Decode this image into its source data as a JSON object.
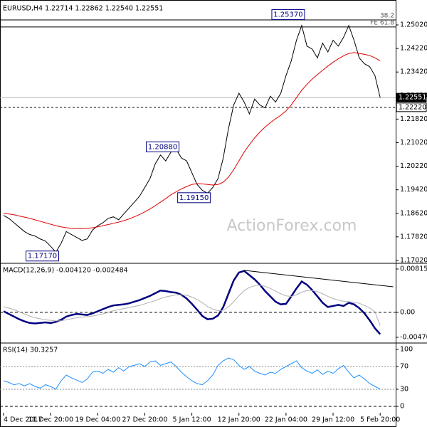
{
  "chart_data": [
    {
      "type": "line",
      "title": "EURUSD,H4  1.22714 1.22862 1.22540 1.22551",
      "watermark": "ActionForex.com",
      "series": [
        {
          "color": "#000000",
          "values": [
            1.1855,
            1.1845,
            1.183,
            1.1815,
            1.18,
            1.179,
            1.1785,
            1.1775,
            1.1768,
            1.175,
            1.173,
            1.176,
            1.18,
            1.179,
            1.178,
            1.177,
            1.1775,
            1.1805,
            1.182,
            1.183,
            1.1845,
            1.185,
            1.184,
            1.186,
            1.188,
            1.19,
            1.192,
            1.195,
            1.198,
            1.203,
            1.206,
            1.204,
            1.207,
            1.208,
            1.205,
            1.204,
            1.2,
            1.196,
            1.194,
            1.193,
            1.195,
            1.198,
            1.205,
            1.215,
            1.223,
            1.227,
            1.224,
            1.22,
            1.225,
            1.223,
            1.222,
            1.226,
            1.224,
            1.227,
            1.233,
            1.238,
            1.245,
            1.25,
            1.243,
            1.242,
            1.239,
            1.244,
            1.241,
            1.245,
            1.243,
            1.246,
            1.25,
            1.245,
            1.239,
            1.237,
            1.236,
            1.233,
            1.2255
          ]
        },
        {
          "color": "#e00000",
          "values": [
            1.1862,
            1.186,
            1.1857,
            1.1853,
            1.1849,
            1.1845,
            1.184,
            1.1835,
            1.183,
            1.1825,
            1.182,
            1.1816,
            1.1813,
            1.1811,
            1.181,
            1.181,
            1.1811,
            1.1813,
            1.1816,
            1.182,
            1.1824,
            1.1828,
            1.1832,
            1.1837,
            1.1843,
            1.185,
            1.1858,
            1.1867,
            1.1877,
            1.1888,
            1.19,
            1.1912,
            1.1925,
            1.1935,
            1.1945,
            1.1953,
            1.196,
            1.1963,
            1.1962,
            1.196,
            1.1958,
            1.196,
            1.1968,
            1.1985,
            1.201,
            1.204,
            1.207,
            1.2095,
            1.2118,
            1.2138,
            1.2155,
            1.217,
            1.2183,
            1.2195,
            1.221,
            1.223,
            1.2255,
            1.228,
            1.23,
            1.2318,
            1.2333,
            1.2348,
            1.2362,
            1.2375,
            1.2387,
            1.2397,
            1.2405,
            1.2408,
            1.2405,
            1.2402,
            1.2398,
            1.239,
            1.238
          ]
        }
      ],
      "ylim": [
        1.1697,
        1.2577
      ],
      "yticks": [
        {
          "value": 1.2502,
          "label": "1.25020"
        },
        {
          "value": 1.2422,
          "label": "1.24220"
        },
        {
          "value": 1.2342,
          "label": "1.23420"
        },
        {
          "value": 1.2262,
          "label": "1.22620"
        },
        {
          "value": 1.2182,
          "label": "1.21820"
        },
        {
          "value": 1.2102,
          "label": "1.21020"
        },
        {
          "value": 1.2022,
          "label": "1.20220"
        },
        {
          "value": 1.1942,
          "label": "1.19420"
        },
        {
          "value": 1.1862,
          "label": "1.18620"
        },
        {
          "value": 1.1782,
          "label": "1.17820"
        },
        {
          "value": 1.1702,
          "label": "1.17020"
        }
      ],
      "levels": [
        {
          "value": 1.2519,
          "label": "38.2"
        },
        {
          "value": 1.2495,
          "label": "FE 61.8"
        }
      ],
      "annotations": [
        {
          "x": 57,
          "value": 1.2537,
          "label": "1.25370"
        },
        {
          "x": 33,
          "value": 1.2088,
          "label": "1.20880"
        },
        {
          "x": 39,
          "value": 1.1915,
          "label": "1.19150"
        },
        {
          "x": 10,
          "value": 1.1717,
          "label": "1.17170"
        }
      ],
      "price_tags": [
        {
          "value": 1.22551,
          "label": "1.22551",
          "style": "solid"
        },
        {
          "value": 1.2222,
          "label": "1.22220",
          "style": "dashed"
        }
      ]
    },
    {
      "type": "line",
      "title": "MACD(12,26,9) -0.004120 -0.002484",
      "series": [
        {
          "color": "#000080",
          "values": [
            0.0002,
            -0.0003,
            -0.0008,
            -0.0013,
            -0.0017,
            -0.002,
            -0.0021,
            -0.002,
            -0.0019,
            -0.002,
            -0.0018,
            -0.0014,
            -0.0008,
            -0.0005,
            -0.0003,
            -0.0004,
            -0.0005,
            -0.0002,
            0.0002,
            0.0006,
            0.001,
            0.0013,
            0.0014,
            0.0015,
            0.0017,
            0.002,
            0.0023,
            0.0027,
            0.0031,
            0.0036,
            0.0041,
            0.004,
            0.0038,
            0.0037,
            0.0033,
            0.0026,
            0.0016,
            0.0005,
            -0.0007,
            -0.0013,
            -0.0012,
            -0.0006,
            0.001,
            0.0035,
            0.006,
            0.0075,
            0.0078,
            0.007,
            0.0062,
            0.0052,
            0.004,
            0.003,
            0.002,
            0.0015,
            0.0016,
            0.003,
            0.0045,
            0.0058,
            0.0052,
            0.0042,
            0.003,
            0.0018,
            0.001,
            0.0012,
            0.0014,
            0.0012,
            0.0018,
            0.0015,
            0.0008,
            -0.0002,
            -0.0015,
            -0.003,
            -0.00412
          ]
        },
        {
          "color": "#b0b0b0",
          "values": [
            0.001,
            0.0008,
            0.0005,
            0.0001,
            -0.0003,
            -0.0007,
            -0.001,
            -0.0012,
            -0.0014,
            -0.0015,
            -0.0016,
            -0.0016,
            -0.0014,
            -0.0012,
            -0.001,
            -0.0009,
            -0.0008,
            -0.0007,
            -0.0005,
            -0.0003,
            0.0,
            0.0003,
            0.0005,
            0.0007,
            0.0009,
            0.0011,
            0.0013,
            0.0016,
            0.0019,
            0.0022,
            0.0026,
            0.0029,
            0.0031,
            0.0033,
            0.0033,
            0.0032,
            0.0029,
            0.0024,
            0.0018,
            0.0011,
            0.0006,
            0.0003,
            0.0004,
            0.001,
            0.002,
            0.0031,
            0.0041,
            0.0047,
            0.005,
            0.0051,
            0.0049,
            0.0045,
            0.004,
            0.0035,
            0.0031,
            0.003,
            0.0033,
            0.0038,
            0.0041,
            0.0041,
            0.0039,
            0.0035,
            0.003,
            0.0026,
            0.0023,
            0.0021,
            0.002,
            0.0019,
            0.0017,
            0.0013,
            0.0008,
            0.0001,
            -0.002484
          ]
        }
      ],
      "ylim": [
        -0.00551,
        0.00896
      ],
      "yticks": [
        0.008157,
        {
          "value": 0,
          "label": "0.00"
        },
        -0.004705
      ],
      "trendline": {
        "x": [
          46,
          74.5
        ],
        "y": [
          0.0079,
          0.0048
        ]
      }
    },
    {
      "type": "line",
      "title": "RSI(14) 30.3257",
      "categories": [
        "4 Dec 2017",
        null,
        null,
        null,
        null,
        null,
        null,
        null,
        null,
        "11 Dec 20:00",
        null,
        null,
        null,
        null,
        null,
        null,
        null,
        null,
        "19 Dec 04:00",
        null,
        null,
        null,
        null,
        null,
        null,
        null,
        null,
        "27 Dec 20:00",
        null,
        null,
        null,
        null,
        null,
        null,
        null,
        null,
        "5 Jan 12:00",
        null,
        null,
        null,
        null,
        null,
        null,
        null,
        null,
        "12 Jan 20:00",
        null,
        null,
        null,
        null,
        null,
        null,
        null,
        null,
        "22 Jan 04:00",
        null,
        null,
        null,
        null,
        null,
        null,
        null,
        null,
        "29 Jan 12:00",
        null,
        null,
        null,
        null,
        null,
        null,
        null,
        null,
        "5 Feb 20:00"
      ],
      "series": [
        {
          "color": "#1e90ff",
          "values": [
            45,
            42,
            38,
            40,
            36,
            40,
            35,
            32,
            38,
            35,
            30,
            45,
            55,
            50,
            46,
            42,
            48,
            60,
            62,
            58,
            65,
            60,
            68,
            62,
            70,
            72,
            75,
            70,
            78,
            80,
            72,
            75,
            78,
            70,
            60,
            52,
            45,
            40,
            38,
            45,
            55,
            72,
            80,
            85,
            82,
            72,
            65,
            70,
            62,
            58,
            55,
            60,
            58,
            65,
            70,
            75,
            80,
            68,
            62,
            58,
            64,
            56,
            62,
            58,
            66,
            72,
            60,
            50,
            55,
            48,
            40,
            35,
            30.3257
          ]
        }
      ],
      "ylim": [
        -11.25,
        108.75
      ],
      "yticks": [
        100,
        70,
        30,
        0
      ],
      "hlines": [
        70,
        30
      ]
    }
  ]
}
